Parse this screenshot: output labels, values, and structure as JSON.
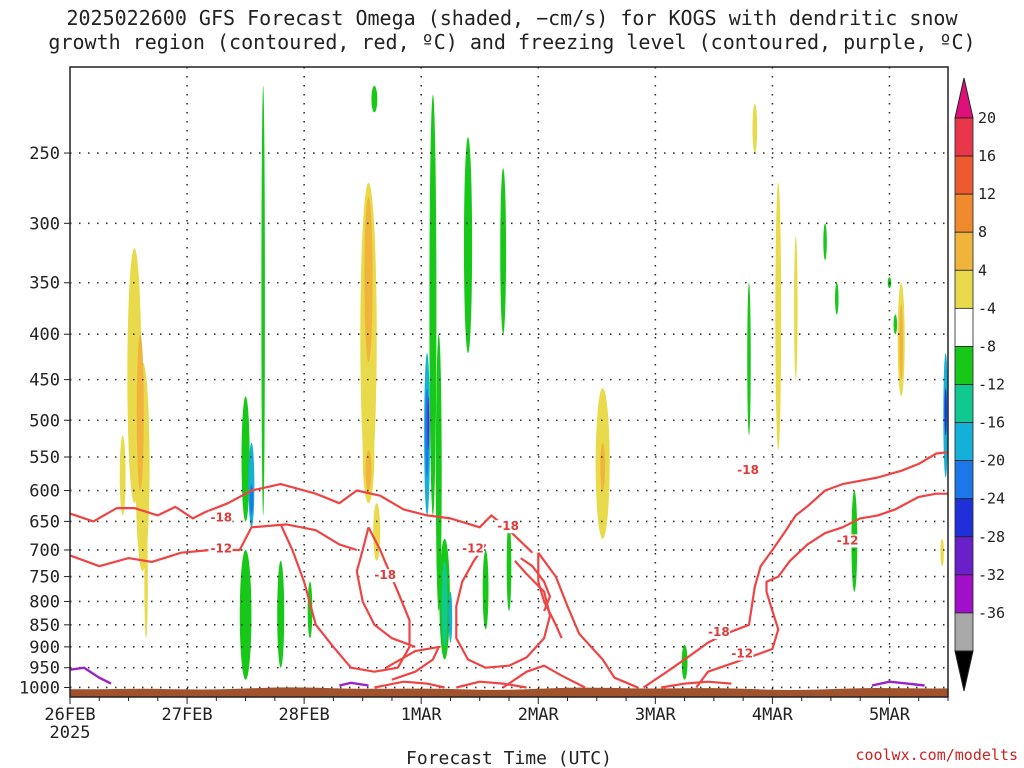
{
  "title": {
    "line1": "2025022600 GFS Forecast Omega (shaded, −cm/s) for KOGS with dendritic snow",
    "line2": "growth region (contoured, red, ºC) and freezing level (contoured, purple, ºC)"
  },
  "credit": "coolwx.com/modelts",
  "chart_data": {
    "type": "heatmap",
    "xlabel": "Forecast Time (UTC)",
    "x_tick_labels": [
      "26FEB",
      "27FEB",
      "28FEB",
      "1MAR",
      "2MAR",
      "3MAR",
      "4MAR",
      "5MAR"
    ],
    "x_tick_sublabel": "2025",
    "x_range_days": [
      0,
      7.5
    ],
    "y_tick_labels": [
      "250",
      "300",
      "350",
      "400",
      "450",
      "500",
      "550",
      "600",
      "650",
      "700",
      "750",
      "800",
      "850",
      "900",
      "950",
      "1000"
    ],
    "y_range_hPa": [
      200,
      1025
    ],
    "grid": true,
    "colorbar": {
      "labels": [
        "20",
        "16",
        "12",
        "8",
        "4",
        "-4",
        "-8",
        "-12",
        "-16",
        "-20",
        "-24",
        "-28",
        "-32",
        "-36"
      ],
      "colors": [
        "#e8364a",
        "#ee5a30",
        "#f08a2e",
        "#f0b43c",
        "#e8da4a",
        "#ffffff",
        "#18c818",
        "#10c890",
        "#14b0d8",
        "#1c78e8",
        "#2030d8",
        "#6a20c8",
        "#a010c8",
        "#a8a8a8"
      ],
      "top_arrow_color": "#e0107a",
      "bottom_arrow_color": "#000000"
    },
    "colors": {
      "dgz_contour": "#ee4444",
      "freezing_contour": "#9a22c8",
      "ground": "#a0522d"
    },
    "contour_labels": [
      {
        "text": "-18",
        "x": 1.2,
        "p": 650
      },
      {
        "text": "-12",
        "x": 1.2,
        "p": 705
      },
      {
        "text": "-18",
        "x": 2.6,
        "p": 755
      },
      {
        "text": "-18",
        "x": 3.65,
        "p": 665
      },
      {
        "text": "-12",
        "x": 3.35,
        "p": 705
      },
      {
        "text": "-18",
        "x": 5.7,
        "p": 575
      },
      {
        "text": "-18",
        "x": 5.45,
        "p": 875
      },
      {
        "text": "-12",
        "x": 5.65,
        "p": 925
      },
      {
        "text": "-12",
        "x": 6.55,
        "p": 690
      }
    ],
    "dgz_contours": [
      [
        [
          0.0,
          637
        ],
        [
          0.2,
          650
        ],
        [
          0.4,
          628
        ],
        [
          0.55,
          628
        ],
        [
          0.75,
          640
        ],
        [
          0.9,
          626
        ],
        [
          1.05,
          645
        ],
        [
          1.15,
          635
        ],
        [
          1.35,
          620
        ],
        [
          1.55,
          600
        ],
        [
          1.8,
          590
        ],
        [
          2.1,
          605
        ],
        [
          2.3,
          620
        ],
        [
          2.45,
          600
        ],
        [
          2.65,
          608
        ],
        [
          2.85,
          630
        ],
        [
          3.05,
          640
        ],
        [
          3.25,
          645
        ],
        [
          3.5,
          660
        ],
        [
          3.6,
          640
        ],
        [
          3.75,
          665
        ],
        [
          3.95,
          705
        ]
      ],
      [
        [
          0.0,
          710
        ],
        [
          0.25,
          730
        ],
        [
          0.5,
          715
        ],
        [
          0.7,
          722
        ],
        [
          0.95,
          705
        ],
        [
          1.2,
          700
        ],
        [
          1.45,
          700
        ],
        [
          1.55,
          660
        ],
        [
          1.85,
          655
        ],
        [
          2.1,
          665
        ],
        [
          2.3,
          690
        ],
        [
          2.45,
          700
        ]
      ],
      [
        [
          1.8,
          655
        ],
        [
          1.9,
          700
        ],
        [
          2.0,
          760
        ],
        [
          2.1,
          850
        ],
        [
          2.25,
          900
        ],
        [
          2.4,
          950
        ],
        [
          2.6,
          960
        ],
        [
          2.8,
          950
        ],
        [
          2.9,
          900
        ],
        [
          2.9,
          840
        ],
        [
          2.8,
          780
        ],
        [
          2.65,
          700
        ],
        [
          2.55,
          660
        ]
      ],
      [
        [
          2.55,
          660
        ],
        [
          2.5,
          700
        ],
        [
          2.45,
          740
        ],
        [
          2.5,
          800
        ],
        [
          2.6,
          850
        ],
        [
          2.75,
          880
        ],
        [
          2.95,
          900
        ]
      ],
      [
        [
          3.55,
          690
        ],
        [
          3.45,
          720
        ],
        [
          3.35,
          760
        ],
        [
          3.3,
          810
        ],
        [
          3.3,
          880
        ],
        [
          3.4,
          930
        ],
        [
          3.55,
          950
        ],
        [
          3.75,
          945
        ],
        [
          3.9,
          925
        ],
        [
          4.05,
          880
        ],
        [
          4.1,
          830
        ],
        [
          4.05,
          780
        ],
        [
          3.9,
          745
        ],
        [
          3.8,
          720
        ]
      ],
      [
        [
          3.85,
          715
        ],
        [
          3.95,
          730
        ],
        [
          4.05,
          760
        ],
        [
          4.1,
          790
        ],
        [
          4.05,
          820
        ]
      ],
      [
        [
          4.0,
          705
        ],
        [
          4.15,
          750
        ],
        [
          4.25,
          810
        ],
        [
          4.35,
          870
        ],
        [
          4.55,
          930
        ],
        [
          4.65,
          975
        ],
        [
          4.85,
          1000
        ]
      ],
      [
        [
          4.0,
          705
        ],
        [
          4.0,
          760
        ],
        [
          4.05,
          800
        ],
        [
          4.15,
          850
        ],
        [
          4.2,
          880
        ]
      ],
      [
        [
          2.7,
          950
        ],
        [
          2.95,
          910
        ],
        [
          3.15,
          900
        ],
        [
          3.1,
          930
        ],
        [
          2.95,
          960
        ],
        [
          2.75,
          980
        ]
      ],
      [
        [
          2.6,
          1000
        ],
        [
          2.85,
          985
        ],
        [
          3.05,
          990
        ],
        [
          3.2,
          1000
        ]
      ],
      [
        [
          3.3,
          1000
        ],
        [
          3.5,
          985
        ],
        [
          3.7,
          990
        ],
        [
          3.9,
          1000
        ]
      ],
      [
        [
          3.7,
          1000
        ],
        [
          3.9,
          960
        ],
        [
          4.05,
          945
        ],
        [
          4.2,
          970
        ],
        [
          4.4,
          1000
        ]
      ],
      [
        [
          4.9,
          1000
        ],
        [
          5.1,
          960
        ],
        [
          5.3,
          920
        ],
        [
          5.45,
          890
        ],
        [
          5.6,
          870
        ],
        [
          5.8,
          850
        ],
        [
          5.85,
          770
        ],
        [
          5.9,
          730
        ],
        [
          6.0,
          700
        ],
        [
          6.1,
          670
        ],
        [
          6.2,
          640
        ],
        [
          6.3,
          625
        ],
        [
          6.45,
          600
        ],
        [
          6.6,
          590
        ],
        [
          6.75,
          585
        ],
        [
          6.9,
          580
        ],
        [
          7.1,
          570
        ],
        [
          7.25,
          560
        ],
        [
          7.4,
          545
        ],
        [
          7.5,
          543
        ]
      ],
      [
        [
          5.35,
          1000
        ],
        [
          5.45,
          960
        ],
        [
          5.7,
          935
        ],
        [
          5.85,
          920
        ],
        [
          6.0,
          905
        ],
        [
          6.05,
          860
        ],
        [
          6.0,
          820
        ],
        [
          5.95,
          780
        ],
        [
          5.95,
          760
        ],
        [
          6.05,
          750
        ],
        [
          6.15,
          720
        ],
        [
          6.3,
          690
        ],
        [
          6.45,
          670
        ],
        [
          6.6,
          660
        ],
        [
          6.75,
          645
        ],
        [
          6.9,
          640
        ],
        [
          7.05,
          630
        ],
        [
          7.25,
          610
        ],
        [
          7.4,
          605
        ],
        [
          7.5,
          605
        ]
      ],
      [
        [
          5.05,
          1000
        ],
        [
          5.25,
          990
        ],
        [
          5.45,
          985
        ],
        [
          5.65,
          990
        ]
      ]
    ],
    "freezing_contours": [
      [
        [
          0.0,
          955
        ],
        [
          0.12,
          950
        ],
        [
          0.25,
          975
        ],
        [
          0.35,
          990
        ]
      ],
      [
        [
          2.3,
          995
        ],
        [
          2.4,
          988
        ],
        [
          2.55,
          995
        ]
      ],
      [
        [
          6.85,
          995
        ],
        [
          7.0,
          985
        ],
        [
          7.15,
          990
        ],
        [
          7.3,
          995
        ]
      ]
    ],
    "omega_blobs": [
      {
        "x": 0.55,
        "p0": 320,
        "p1": 620,
        "w": 0.12,
        "c": "#e8da4a"
      },
      {
        "x": 0.62,
        "p0": 430,
        "p1": 740,
        "w": 0.12,
        "c": "#e8da4a"
      },
      {
        "x": 0.6,
        "p0": 400,
        "p1": 600,
        "w": 0.06,
        "c": "#f0b43c"
      },
      {
        "x": 0.45,
        "p0": 520,
        "p1": 640,
        "w": 0.05,
        "c": "#e8da4a"
      },
      {
        "x": 0.65,
        "p0": 650,
        "p1": 880,
        "w": 0.03,
        "c": "#e8da4a"
      },
      {
        "x": 1.5,
        "p0": 700,
        "p1": 980,
        "w": 0.1,
        "c": "#18c818"
      },
      {
        "x": 1.5,
        "p0": 470,
        "p1": 650,
        "w": 0.07,
        "c": "#18c818"
      },
      {
        "x": 1.55,
        "p0": 530,
        "p1": 660,
        "w": 0.05,
        "c": "#14b0d8"
      },
      {
        "x": 1.55,
        "p0": 590,
        "p1": 640,
        "w": 0.03,
        "c": "#1c78e8"
      },
      {
        "x": 1.65,
        "p0": 210,
        "p1": 640,
        "w": 0.03,
        "c": "#18c818"
      },
      {
        "x": 1.8,
        "p0": 720,
        "p1": 950,
        "w": 0.06,
        "c": "#18c818"
      },
      {
        "x": 2.05,
        "p0": 760,
        "p1": 880,
        "w": 0.04,
        "c": "#18c818"
      },
      {
        "x": 2.55,
        "p0": 270,
        "p1": 600,
        "w": 0.14,
        "c": "#e8da4a"
      },
      {
        "x": 2.55,
        "p0": 280,
        "p1": 430,
        "w": 0.07,
        "c": "#f0b43c"
      },
      {
        "x": 2.55,
        "p0": 480,
        "p1": 620,
        "w": 0.1,
        "c": "#e8da4a"
      },
      {
        "x": 2.55,
        "p0": 540,
        "p1": 600,
        "w": 0.05,
        "c": "#f0b43c"
      },
      {
        "x": 2.62,
        "p0": 620,
        "p1": 720,
        "w": 0.06,
        "c": "#e8da4a"
      },
      {
        "x": 2.6,
        "p0": 210,
        "p1": 225,
        "w": 0.05,
        "c": "#18c818"
      },
      {
        "x": 3.1,
        "p0": 215,
        "p1": 640,
        "w": 0.06,
        "c": "#18c818"
      },
      {
        "x": 3.15,
        "p0": 400,
        "p1": 820,
        "w": 0.05,
        "c": "#18c818"
      },
      {
        "x": 3.2,
        "p0": 680,
        "p1": 930,
        "w": 0.09,
        "c": "#18c818"
      },
      {
        "x": 3.2,
        "p0": 720,
        "p1": 900,
        "w": 0.05,
        "c": "#10c890"
      },
      {
        "x": 3.25,
        "p0": 780,
        "p1": 890,
        "w": 0.03,
        "c": "#14b0d8"
      },
      {
        "x": 3.05,
        "p0": 420,
        "p1": 640,
        "w": 0.05,
        "c": "#14b0d8"
      },
      {
        "x": 3.05,
        "p0": 460,
        "p1": 580,
        "w": 0.03,
        "c": "#1c78e8"
      },
      {
        "x": 3.06,
        "p0": 470,
        "p1": 540,
        "w": 0.015,
        "c": "#6a20c8"
      },
      {
        "x": 3.4,
        "p0": 240,
        "p1": 420,
        "w": 0.07,
        "c": "#18c818"
      },
      {
        "x": 3.55,
        "p0": 700,
        "p1": 860,
        "w": 0.05,
        "c": "#18c818"
      },
      {
        "x": 3.7,
        "p0": 260,
        "p1": 400,
        "w": 0.05,
        "c": "#18c818"
      },
      {
        "x": 3.75,
        "p0": 650,
        "p1": 820,
        "w": 0.04,
        "c": "#18c818"
      },
      {
        "x": 4.55,
        "p0": 460,
        "p1": 680,
        "w": 0.12,
        "c": "#e8da4a"
      },
      {
        "x": 4.55,
        "p0": 530,
        "p1": 600,
        "w": 0.04,
        "c": "#f0b43c"
      },
      {
        "x": 5.25,
        "p0": 895,
        "p1": 980,
        "w": 0.05,
        "c": "#18c818"
      },
      {
        "x": 6.05,
        "p0": 270,
        "p1": 540,
        "w": 0.05,
        "c": "#e8da4a"
      },
      {
        "x": 5.8,
        "p0": 350,
        "p1": 520,
        "w": 0.03,
        "c": "#18c818"
      },
      {
        "x": 6.2,
        "p0": 310,
        "p1": 450,
        "w": 0.03,
        "c": "#e8da4a"
      },
      {
        "x": 6.55,
        "p0": 350,
        "p1": 380,
        "w": 0.03,
        "c": "#18c818"
      },
      {
        "x": 6.7,
        "p0": 600,
        "p1": 780,
        "w": 0.05,
        "c": "#18c818"
      },
      {
        "x": 7.1,
        "p0": 350,
        "p1": 470,
        "w": 0.06,
        "c": "#e8da4a"
      },
      {
        "x": 7.1,
        "p0": 370,
        "p1": 450,
        "w": 0.03,
        "c": "#f0b43c"
      },
      {
        "x": 7.48,
        "p0": 420,
        "p1": 580,
        "w": 0.04,
        "c": "#14b0d8"
      },
      {
        "x": 7.48,
        "p0": 460,
        "p1": 520,
        "w": 0.02,
        "c": "#2030d8"
      },
      {
        "x": 7.45,
        "p0": 680,
        "p1": 730,
        "w": 0.03,
        "c": "#e8da4a"
      },
      {
        "x": 6.45,
        "p0": 300,
        "p1": 330,
        "w": 0.03,
        "c": "#18c818"
      },
      {
        "x": 5.85,
        "p0": 220,
        "p1": 250,
        "w": 0.04,
        "c": "#e8da4a"
      },
      {
        "x": 7.05,
        "p0": 380,
        "p1": 400,
        "w": 0.03,
        "c": "#18c818"
      },
      {
        "x": 7.0,
        "p0": 345,
        "p1": 355,
        "w": 0.03,
        "c": "#18c818"
      }
    ]
  }
}
